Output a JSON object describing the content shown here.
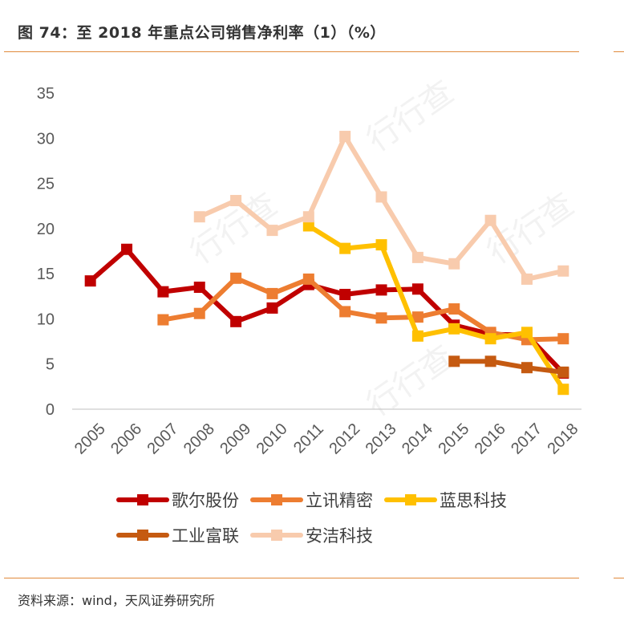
{
  "header": {
    "title": "图 74：至 2018 年重点公司销售净利率（1）（%）"
  },
  "footer": {
    "source": "资料来源：wind，天风证券研究所"
  },
  "chart_data": {
    "type": "line",
    "title": "至 2018 年重点公司销售净利率（1）（%）",
    "xlabel": "",
    "ylabel": "",
    "ylim": [
      0,
      35
    ],
    "yticks": [
      0,
      5,
      10,
      15,
      20,
      25,
      30,
      35
    ],
    "categories": [
      "2005",
      "2006",
      "2007",
      "2008",
      "2009",
      "2010",
      "2011",
      "2012",
      "2013",
      "2014",
      "2015",
      "2016",
      "2017",
      "2018"
    ],
    "legend_position": "bottom",
    "grid": false,
    "series": [
      {
        "name": "歌尔股份",
        "color": "#C00000",
        "values": [
          14.2,
          17.7,
          13.0,
          13.5,
          9.7,
          11.2,
          13.8,
          12.7,
          13.2,
          13.3,
          9.3,
          8.3,
          8.2,
          4.0
        ]
      },
      {
        "name": "立讯精密",
        "color": "#ED7D31",
        "values": [
          null,
          null,
          9.9,
          10.6,
          14.5,
          12.8,
          14.4,
          10.8,
          10.1,
          10.2,
          11.1,
          8.5,
          7.7,
          7.8
        ]
      },
      {
        "name": "蓝思科技",
        "color": "#FFC000",
        "values": [
          null,
          null,
          null,
          null,
          null,
          null,
          20.3,
          17.8,
          18.2,
          8.1,
          8.9,
          7.8,
          8.5,
          2.2
        ]
      },
      {
        "name": "工业富联",
        "color": "#C55A11",
        "values": [
          null,
          null,
          null,
          null,
          null,
          null,
          null,
          null,
          null,
          null,
          5.3,
          5.3,
          4.6,
          4.1
        ]
      },
      {
        "name": "安洁科技",
        "color": "#F8CBAD",
        "values": [
          null,
          null,
          null,
          21.3,
          23.1,
          19.8,
          21.3,
          30.2,
          23.5,
          16.8,
          16.1,
          20.9,
          14.4,
          15.3
        ]
      }
    ]
  }
}
